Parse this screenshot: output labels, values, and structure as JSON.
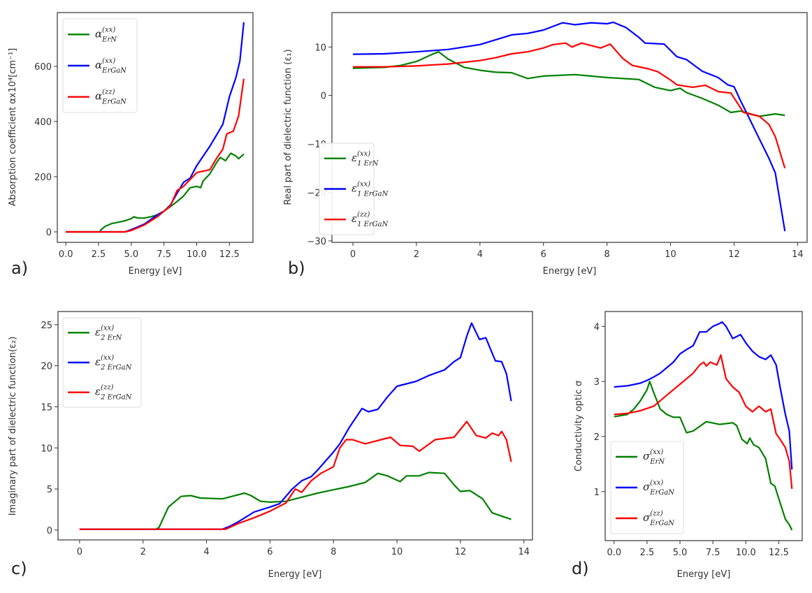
{
  "chart_data": [
    {
      "type": "line",
      "panel_label": "a)",
      "xlabel": "Energy [eV]",
      "ylabel": "Absorption coefficient αx10⁴[cm⁻¹]",
      "xlim": [
        -0.65,
        14.3
      ],
      "ylim": [
        -38,
        795
      ],
      "xticks": [
        0,
        2.5,
        5,
        7.5,
        10,
        12.5
      ],
      "xtick_labels": [
        "0.0",
        "2.5",
        "5.0",
        "7.5",
        "10.0",
        "12.5"
      ],
      "yticks": [
        0,
        200,
        400,
        600
      ],
      "ytick_labels": [
        "0",
        "200",
        "400",
        "600"
      ],
      "grid": false,
      "legend_position": "top-left",
      "series": [
        {
          "name": "α(xx) ErN",
          "symbol": "α",
          "sup": "(xx)",
          "sub": "ErN",
          "color": "#008000",
          "x": [
            0,
            2.6,
            2.7,
            3,
            3.5,
            4,
            4.5,
            5,
            5.2,
            5.5,
            6,
            6.5,
            7,
            7.5,
            8,
            8.5,
            9,
            9.5,
            10,
            10.3,
            10.5,
            11,
            11.5,
            11.8,
            12.2,
            12.6,
            13,
            13.2,
            13.6
          ],
          "y": [
            0,
            0,
            8,
            20,
            30,
            35,
            40,
            48,
            55,
            50,
            50,
            55,
            62,
            75,
            92,
            110,
            130,
            160,
            165,
            160,
            185,
            210,
            250,
            270,
            258,
            285,
            275,
            265,
            282
          ]
        },
        {
          "name": "α(xx) ErGaN",
          "symbol": "α",
          "sup": "(xx)",
          "sub": "ErGaN",
          "color": "#0000ff",
          "x": [
            0,
            4.5,
            5,
            5.5,
            6,
            6.5,
            7,
            7.5,
            8,
            8.5,
            9,
            9.5,
            10,
            10.5,
            11,
            11.5,
            12,
            12.5,
            13,
            13.3,
            13.6
          ],
          "y": [
            0,
            0,
            8,
            18,
            28,
            45,
            62,
            75,
            98,
            140,
            180,
            195,
            240,
            275,
            310,
            350,
            390,
            490,
            560,
            620,
            760
          ]
        },
        {
          "name": "α(zz) ErGaN",
          "symbol": "α",
          "sup": "(zz)",
          "sub": "ErGaN",
          "color": "#ff0000",
          "x": [
            0,
            4.5,
            5,
            5.5,
            6,
            6.5,
            7,
            7.5,
            8,
            8.5,
            9,
            9.5,
            10,
            10.5,
            11,
            11.5,
            12,
            12.3,
            12.8,
            13.2,
            13.6
          ],
          "y": [
            0,
            0,
            5,
            15,
            25,
            40,
            55,
            75,
            95,
            150,
            165,
            190,
            215,
            220,
            225,
            265,
            300,
            355,
            365,
            420,
            555
          ]
        }
      ]
    },
    {
      "type": "line",
      "panel_label": "b)",
      "xlabel": "Energy [eV]",
      "ylabel": "Real part of dielectric function (ε₁)",
      "xlim": [
        -0.66,
        14.3
      ],
      "ylim": [
        -30.3,
        17.1
      ],
      "xticks": [
        0,
        2,
        4,
        6,
        8,
        10,
        12,
        14
      ],
      "xtick_labels": [
        "0",
        "2",
        "4",
        "6",
        "8",
        "10",
        "12",
        "14"
      ],
      "yticks": [
        -30,
        -20,
        -10,
        0,
        10
      ],
      "ytick_labels": [
        "−30",
        "−20",
        "−10",
        "0",
        "10"
      ],
      "grid": false,
      "legend_position": "bottom-left",
      "series": [
        {
          "name": "ε1(xx) ErN",
          "symbol": "ε",
          "sup": "(xx)",
          "sub": "1 ErN",
          "color": "#008000",
          "x": [
            0,
            1,
            1.5,
            2,
            2.5,
            2.7,
            3,
            3.5,
            4,
            4.5,
            5,
            5.5,
            6,
            7,
            8,
            9,
            9.5,
            10,
            10.3,
            10.5,
            11,
            11.5,
            11.9,
            12.2,
            12.8,
            13.3,
            13.6
          ],
          "y": [
            5.6,
            5.8,
            6.2,
            7,
            8.5,
            9,
            7.5,
            5.8,
            5.2,
            4.8,
            4.7,
            3.5,
            4,
            4.3,
            3.7,
            3.3,
            1.7,
            1.0,
            1.5,
            0.6,
            -0.6,
            -2,
            -3.5,
            -3.2,
            -4.3,
            -3.8,
            -4.1
          ]
        },
        {
          "name": "ε1(xx) ErGaN",
          "symbol": "ε",
          "sup": "(xx)",
          "sub": "1 ErGaN",
          "color": "#0000ff",
          "x": [
            0,
            1,
            2,
            3,
            3.5,
            4,
            4.5,
            5,
            5.5,
            6,
            6.6,
            7,
            7.5,
            8,
            8.2,
            8.6,
            9,
            9.2,
            9.8,
            10.2,
            10.5,
            11,
            11.5,
            11.8,
            12,
            12.2,
            12.5,
            12.8,
            13.1,
            13.3,
            13.6
          ],
          "y": [
            8.5,
            8.6,
            9,
            9.5,
            10,
            10.5,
            11.5,
            12.5,
            12.8,
            13.5,
            15,
            14.6,
            15,
            14.8,
            15.1,
            14,
            12,
            10.8,
            10.6,
            8,
            7.4,
            5,
            3.7,
            2.2,
            1.8,
            -1,
            -5,
            -9,
            -13,
            -16,
            -28
          ]
        },
        {
          "name": "ε1(zz) ErGaN",
          "symbol": "ε",
          "sup": "(zz)",
          "sub": "1 ErGaN",
          "color": "#ff0000",
          "x": [
            0,
            1,
            2,
            3,
            4,
            4.5,
            5,
            5.5,
            6,
            6.3,
            6.7,
            6.9,
            7.2,
            7.8,
            8.1,
            8.5,
            8.8,
            9.3,
            9.6,
            10,
            10.2,
            10.7,
            11.1,
            11.5,
            11.9,
            12.3,
            12.8,
            13.1,
            13.3,
            13.6
          ],
          "y": [
            5.9,
            5.9,
            6.1,
            6.5,
            7.2,
            7.8,
            8.6,
            9,
            9.8,
            10.5,
            10.8,
            10,
            10.8,
            9.8,
            10.6,
            7.6,
            6.2,
            5.5,
            4.9,
            3.2,
            2.2,
            1.7,
            2.1,
            0.8,
            0.5,
            -3.5,
            -4.3,
            -6,
            -8.5,
            -15
          ]
        }
      ]
    },
    {
      "type": "line",
      "panel_label": "c)",
      "xlabel": "Energy [eV]",
      "ylabel": "Imaginary part of dielectric function(ε₂)",
      "xlim": [
        -0.68,
        14.27
      ],
      "ylim": [
        -1.2,
        26.6
      ],
      "xticks": [
        0,
        2,
        4,
        6,
        8,
        10,
        12,
        14
      ],
      "xtick_labels": [
        "0",
        "2",
        "4",
        "6",
        "8",
        "10",
        "12",
        "14"
      ],
      "yticks": [
        0,
        5,
        10,
        15,
        20,
        25
      ],
      "ytick_labels": [
        "0",
        "5",
        "10",
        "15",
        "20",
        "25"
      ],
      "grid": false,
      "legend_position": "top-left",
      "series": [
        {
          "name": "ε2(xx) ErN",
          "symbol": "ε",
          "sup": "(xx)",
          "sub": "2 ErN",
          "color": "#008000",
          "x": [
            0,
            2.4,
            2.5,
            2.8,
            3.2,
            3.5,
            3.8,
            4.5,
            5,
            5.2,
            5.4,
            5.7,
            6,
            6.5,
            7,
            7.5,
            8,
            8.5,
            9,
            9.4,
            9.7,
            10.1,
            10.3,
            10.7,
            11,
            11.5,
            11.8,
            12,
            12.3,
            12.7,
            13,
            13.3,
            13.6
          ],
          "y": [
            0.1,
            0.1,
            0.3,
            2.8,
            4.1,
            4.2,
            3.9,
            3.8,
            4.3,
            4.5,
            4.2,
            3.5,
            3.4,
            3.5,
            4,
            4.5,
            4.9,
            5.3,
            5.8,
            6.9,
            6.6,
            5.9,
            6.6,
            6.6,
            7,
            6.9,
            5.5,
            4.7,
            4.8,
            3.8,
            2.1,
            1.7,
            1.3
          ]
        },
        {
          "name": "ε2(xx) ErGaN",
          "symbol": "ε",
          "sup": "(xx)",
          "sub": "2 ErGaN",
          "color": "#0000ff",
          "x": [
            0,
            4.5,
            4.7,
            5,
            5.5,
            6,
            6.3,
            6.7,
            7,
            7.3,
            7.5,
            8,
            8.2,
            8.5,
            8.9,
            9.1,
            9.4,
            9.7,
            10,
            10.3,
            10.6,
            11,
            11.5,
            11.8,
            12,
            12.2,
            12.35,
            12.6,
            12.8,
            13.1,
            13.3,
            13.45,
            13.6
          ],
          "y": [
            0.1,
            0.1,
            0.4,
            1,
            2.2,
            2.8,
            3.2,
            5,
            6,
            6.5,
            7.3,
            9.5,
            10.5,
            12.5,
            14.8,
            14.4,
            14.7,
            16.2,
            17.5,
            17.8,
            18.1,
            18.8,
            19.5,
            20.5,
            21,
            23.6,
            25.2,
            23.2,
            23.4,
            20.6,
            20.5,
            19,
            15.7
          ]
        },
        {
          "name": "ε2(zz) ErGaN",
          "symbol": "ε",
          "sup": "(zz)",
          "sub": "2 ErGaN",
          "color": "#ff0000",
          "x": [
            0,
            4.6,
            5,
            5.5,
            6,
            6.5,
            6.8,
            7,
            7.3,
            7.6,
            8,
            8.2,
            8.4,
            8.6,
            9,
            9.5,
            9.8,
            10.1,
            10.5,
            10.7,
            11.2,
            11.8,
            12.2,
            12.5,
            12.8,
            13,
            13.2,
            13.3,
            13.45,
            13.6
          ],
          "y": [
            0.1,
            0.1,
            0.8,
            1.5,
            2.3,
            3.3,
            5,
            4.6,
            6,
            6.9,
            7.7,
            10,
            11,
            11,
            10.5,
            11,
            11.3,
            10.3,
            10.2,
            9.6,
            11,
            11.3,
            13.2,
            11.5,
            11.2,
            11.8,
            11.5,
            12,
            11,
            8.3
          ]
        }
      ]
    },
    {
      "type": "line",
      "panel_label": "d)",
      "xlabel": "Energy [eV]",
      "ylabel": "Conductivity optic σ",
      "xlim": [
        -0.68,
        14.28
      ],
      "ylim": [
        0.11,
        4.27
      ],
      "xticks": [
        0,
        2.5,
        5,
        7.5,
        10,
        12.5
      ],
      "xtick_labels": [
        "0.0",
        "2.5",
        "5.0",
        "7.5",
        "10.0",
        "12.5"
      ],
      "yticks": [
        1,
        2,
        3,
        4
      ],
      "ytick_labels": [
        "1",
        "2",
        "3",
        "4"
      ],
      "grid": false,
      "legend_position": "bottom-left",
      "series": [
        {
          "name": "σ(xx) ErN",
          "symbol": "σ",
          "sup": "(xx)",
          "sub": "ErN",
          "color": "#008000",
          "x": [
            0,
            1,
            1.5,
            2,
            2.5,
            2.7,
            3,
            3.5,
            4,
            4.5,
            5,
            5.5,
            6,
            7,
            8,
            9,
            9.3,
            9.7,
            10.1,
            10.3,
            10.6,
            11,
            11.5,
            11.9,
            12.2,
            12.6,
            13,
            13.3,
            13.5
          ],
          "y": [
            2.36,
            2.4,
            2.5,
            2.65,
            2.85,
            3.0,
            2.8,
            2.5,
            2.4,
            2.35,
            2.35,
            2.07,
            2.1,
            2.27,
            2.22,
            2.25,
            2.2,
            1.95,
            1.87,
            1.97,
            1.85,
            1.8,
            1.6,
            1.15,
            1.1,
            0.8,
            0.5,
            0.4,
            0.3
          ]
        },
        {
          "name": "σ(xx) ErGaN",
          "symbol": "σ",
          "sup": "(xx)",
          "sub": "ErGaN",
          "color": "#0000ff",
          "x": [
            0,
            1,
            2,
            2.5,
            3,
            3.5,
            4,
            4.5,
            5,
            5.5,
            6,
            6.5,
            7,
            7.5,
            8,
            8.2,
            8.5,
            9,
            9.6,
            10,
            10.5,
            11,
            11.5,
            11.9,
            12.3,
            12.6,
            13,
            13.3,
            13.5
          ],
          "y": [
            2.9,
            2.92,
            2.97,
            3.02,
            3.08,
            3.15,
            3.25,
            3.35,
            3.5,
            3.58,
            3.65,
            3.9,
            3.9,
            4,
            4.05,
            4.08,
            4,
            3.78,
            3.85,
            3.7,
            3.55,
            3.45,
            3.4,
            3.48,
            3.3,
            2.9,
            2.4,
            2.1,
            1.4
          ]
        },
        {
          "name": "σ(zz) ErGaN",
          "symbol": "σ",
          "sup": "(zz)",
          "sub": "ErGaN",
          "color": "#ff0000",
          "x": [
            0,
            1,
            2,
            3,
            4,
            5,
            5.5,
            6,
            6.5,
            6.8,
            7,
            7.3,
            7.8,
            8.1,
            8.5,
            9,
            9.5,
            10,
            10.5,
            11,
            11.5,
            11.9,
            12.3,
            12.6,
            13,
            13.3,
            13.5
          ],
          "y": [
            2.4,
            2.42,
            2.47,
            2.55,
            2.75,
            2.95,
            3.05,
            3.15,
            3.3,
            3.35,
            3.28,
            3.35,
            3.3,
            3.48,
            3.05,
            2.9,
            2.8,
            2.55,
            2.45,
            2.55,
            2.45,
            2.5,
            2.05,
            1.95,
            1.8,
            1.55,
            1.05
          ]
        }
      ]
    }
  ]
}
